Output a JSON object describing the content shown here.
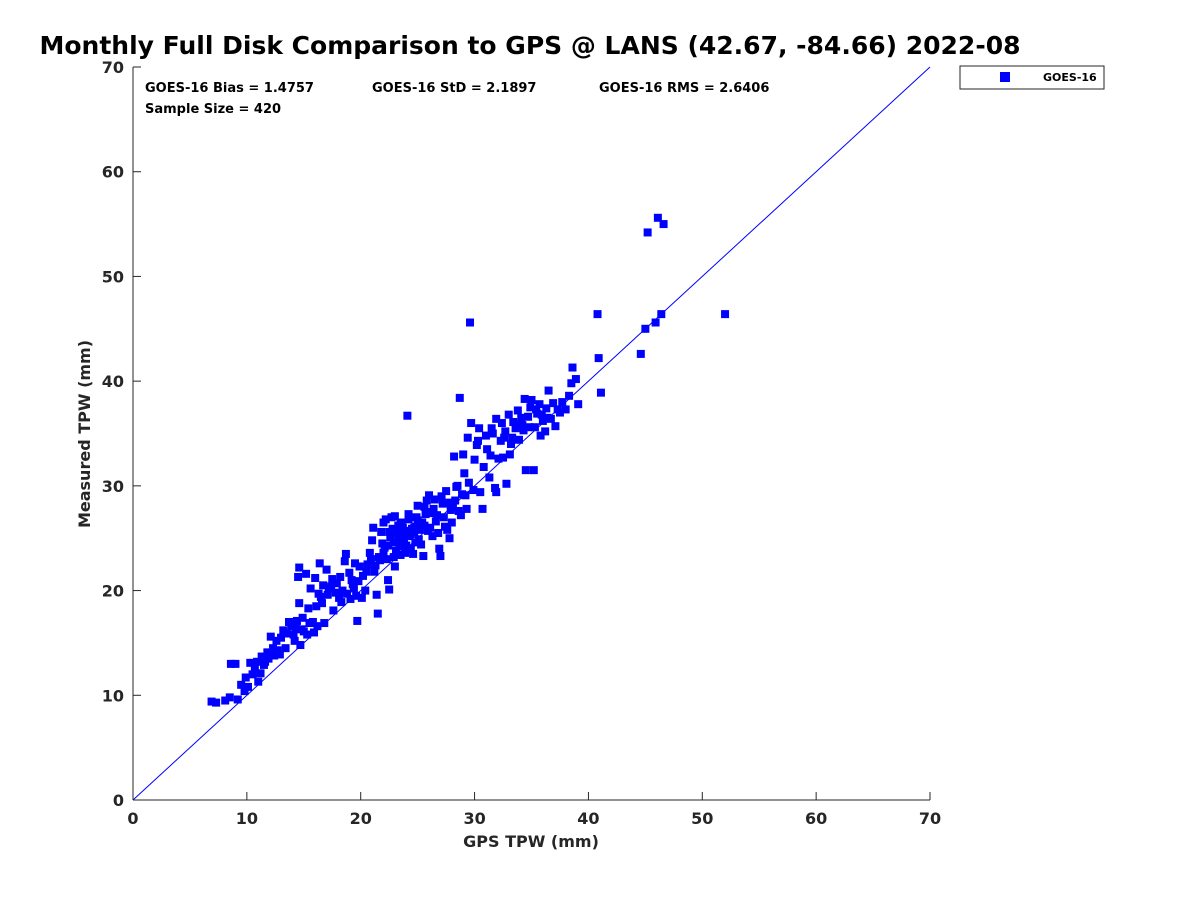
{
  "chart_data": {
    "type": "scatter",
    "title": "Monthly Full Disk Comparison to GPS @ LANS (42.67, -84.66) 2022-08",
    "xlabel": "GPS TPW (mm)",
    "ylabel": "Measured TPW (mm)",
    "xlim": [
      0,
      70
    ],
    "ylim": [
      0,
      70
    ],
    "xticks": [
      "0",
      "10",
      "20",
      "30",
      "40",
      "50",
      "60",
      "70"
    ],
    "yticks": [
      "0",
      "10",
      "20",
      "30",
      "40",
      "50",
      "60",
      "70"
    ],
    "grid": false,
    "legend_position": "outside-top-right",
    "reference_line": {
      "x": [
        0,
        70
      ],
      "y": [
        0,
        70
      ],
      "color": "#0000ff"
    },
    "stats": {
      "bias": "GOES-16 Bias = 1.4757",
      "std": "GOES-16 StD = 2.1897",
      "rms": "GOES-16 RMS = 2.6406",
      "sample": "Sample Size = 420"
    },
    "series": [
      {
        "name": "GOES-16",
        "color": "#0000ff",
        "marker": "square",
        "points": [
          [
            6.9,
            9.4
          ],
          [
            7.3,
            9.3
          ],
          [
            8.1,
            9.5
          ],
          [
            8.5,
            9.8
          ],
          [
            9.2,
            9.6
          ],
          [
            9.8,
            10.4
          ],
          [
            9.5,
            11.0
          ],
          [
            10.1,
            10.8
          ],
          [
            9.9,
            11.7
          ],
          [
            10.5,
            12.0
          ],
          [
            9.0,
            13.0
          ],
          [
            8.6,
            13.0
          ],
          [
            10.3,
            13.1
          ],
          [
            10.9,
            13.2
          ],
          [
            11.0,
            11.3
          ],
          [
            11.2,
            12.1
          ],
          [
            11.5,
            12.9
          ],
          [
            11.3,
            13.7
          ],
          [
            11.8,
            14.1
          ],
          [
            11.9,
            13.5
          ],
          [
            12.3,
            14.5
          ],
          [
            12.1,
            15.6
          ],
          [
            12.6,
            15.2
          ],
          [
            12.9,
            13.9
          ],
          [
            13.4,
            14.5
          ],
          [
            13.2,
            16.2
          ],
          [
            13.7,
            17.0
          ],
          [
            14.1,
            15.8
          ],
          [
            14.3,
            16.5
          ],
          [
            14.7,
            14.8
          ],
          [
            15.0,
            16.1
          ],
          [
            15.3,
            15.8
          ],
          [
            14.9,
            17.4
          ],
          [
            14.6,
            18.8
          ],
          [
            15.4,
            18.3
          ],
          [
            15.8,
            17.0
          ],
          [
            16.2,
            16.6
          ],
          [
            16.1,
            18.5
          ],
          [
            16.5,
            19.4
          ],
          [
            16.8,
            16.9
          ],
          [
            15.6,
            20.2
          ],
          [
            15.2,
            21.6
          ],
          [
            14.5,
            21.3
          ],
          [
            14.6,
            22.2
          ],
          [
            16.0,
            21.2
          ],
          [
            16.4,
            22.6
          ],
          [
            16.7,
            20.5
          ],
          [
            17.0,
            22.0
          ],
          [
            17.1,
            19.6
          ],
          [
            17.4,
            20.4
          ],
          [
            17.8,
            19.8
          ],
          [
            17.6,
            18.1
          ],
          [
            18.1,
            19.3
          ],
          [
            18.4,
            20.0
          ],
          [
            18.2,
            21.3
          ],
          [
            18.6,
            22.8
          ],
          [
            18.7,
            23.5
          ],
          [
            19.0,
            21.7
          ],
          [
            19.3,
            20.6
          ],
          [
            19.6,
            19.5
          ],
          [
            19.7,
            17.1
          ],
          [
            19.9,
            22.3
          ],
          [
            20.2,
            21.4
          ],
          [
            20.4,
            20.0
          ],
          [
            20.6,
            22.5
          ],
          [
            20.8,
            23.6
          ],
          [
            21.0,
            24.8
          ],
          [
            21.2,
            21.8
          ],
          [
            21.4,
            19.6
          ],
          [
            21.5,
            17.8
          ],
          [
            21.6,
            23.2
          ],
          [
            21.8,
            25.6
          ],
          [
            22.0,
            26.5
          ],
          [
            22.1,
            24.1
          ],
          [
            22.3,
            23.0
          ],
          [
            22.4,
            21.0
          ],
          [
            22.5,
            20.1
          ],
          [
            22.6,
            25.1
          ],
          [
            22.7,
            27.0
          ],
          [
            22.9,
            24.6
          ],
          [
            23.0,
            22.3
          ],
          [
            23.1,
            23.8
          ],
          [
            23.2,
            25.5
          ],
          [
            23.3,
            26.2
          ],
          [
            23.4,
            24.2
          ],
          [
            23.5,
            23.4
          ],
          [
            23.6,
            25.0
          ],
          [
            23.7,
            26.0
          ],
          [
            23.8,
            24.5
          ],
          [
            23.9,
            23.6
          ],
          [
            24.0,
            25.7
          ],
          [
            24.1,
            36.7
          ],
          [
            24.2,
            26.8
          ],
          [
            24.3,
            25.2
          ],
          [
            24.4,
            24.0
          ],
          [
            24.6,
            23.5
          ],
          [
            24.7,
            25.6
          ],
          [
            24.8,
            26.1
          ],
          [
            24.9,
            27.0
          ],
          [
            25.1,
            24.9
          ],
          [
            25.2,
            25.8
          ],
          [
            25.4,
            26.5
          ],
          [
            25.5,
            23.3
          ],
          [
            25.7,
            27.3
          ],
          [
            25.8,
            28.6
          ],
          [
            26.0,
            29.1
          ],
          [
            26.1,
            26.0
          ],
          [
            26.3,
            25.2
          ],
          [
            26.4,
            27.8
          ],
          [
            26.6,
            26.6
          ],
          [
            26.8,
            25.5
          ],
          [
            26.9,
            24.0
          ],
          [
            27.0,
            23.3
          ],
          [
            27.2,
            28.3
          ],
          [
            27.3,
            27.0
          ],
          [
            27.5,
            29.5
          ],
          [
            27.6,
            25.8
          ],
          [
            27.8,
            25.0
          ],
          [
            28.0,
            26.5
          ],
          [
            28.1,
            28.0
          ],
          [
            28.2,
            32.8
          ],
          [
            28.4,
            29.9
          ],
          [
            28.6,
            27.6
          ],
          [
            28.7,
            38.4
          ],
          [
            28.9,
            29.2
          ],
          [
            29.0,
            33.0
          ],
          [
            29.1,
            31.2
          ],
          [
            29.3,
            27.8
          ],
          [
            29.4,
            34.6
          ],
          [
            29.6,
            45.6
          ],
          [
            29.7,
            36.0
          ],
          [
            29.9,
            29.6
          ],
          [
            30.0,
            32.5
          ],
          [
            30.2,
            33.9
          ],
          [
            30.4,
            35.5
          ],
          [
            30.5,
            29.4
          ],
          [
            30.7,
            27.8
          ],
          [
            30.8,
            31.8
          ],
          [
            31.0,
            34.8
          ],
          [
            31.1,
            33.5
          ],
          [
            31.3,
            30.8
          ],
          [
            31.5,
            35.5
          ],
          [
            31.6,
            35.0
          ],
          [
            31.8,
            29.8
          ],
          [
            31.9,
            29.4
          ],
          [
            32.1,
            32.6
          ],
          [
            32.3,
            34.3
          ],
          [
            32.4,
            36.0
          ],
          [
            32.5,
            32.7
          ],
          [
            32.7,
            35.2
          ],
          [
            32.8,
            30.2
          ],
          [
            33.0,
            36.8
          ],
          [
            33.1,
            33.0
          ],
          [
            33.3,
            34.6
          ],
          [
            33.4,
            36.1
          ],
          [
            33.6,
            35.5
          ],
          [
            33.8,
            37.2
          ],
          [
            33.9,
            34.4
          ],
          [
            34.1,
            36.5
          ],
          [
            34.3,
            35.3
          ],
          [
            34.4,
            38.3
          ],
          [
            34.5,
            31.5
          ],
          [
            34.7,
            36.6
          ],
          [
            34.9,
            37.5
          ],
          [
            35.0,
            38.2
          ],
          [
            35.2,
            31.5
          ],
          [
            35.3,
            35.6
          ],
          [
            35.5,
            36.9
          ],
          [
            35.7,
            37.8
          ],
          [
            35.8,
            34.8
          ],
          [
            36.0,
            36.2
          ],
          [
            36.2,
            35.2
          ],
          [
            36.3,
            37.4
          ],
          [
            36.5,
            39.1
          ],
          [
            36.7,
            36.4
          ],
          [
            36.9,
            37.9
          ],
          [
            37.1,
            35.7
          ],
          [
            37.3,
            37.3
          ],
          [
            37.5,
            37.0
          ],
          [
            37.7,
            38.0
          ],
          [
            38.0,
            37.3
          ],
          [
            38.3,
            38.6
          ],
          [
            38.5,
            39.8
          ],
          [
            38.6,
            41.3
          ],
          [
            38.9,
            40.2
          ],
          [
            39.1,
            37.8
          ],
          [
            40.8,
            46.4
          ],
          [
            40.9,
            42.2
          ],
          [
            41.1,
            38.9
          ],
          [
            44.6,
            42.6
          ],
          [
            45.0,
            45.0
          ],
          [
            45.2,
            54.2
          ],
          [
            45.9,
            45.6
          ],
          [
            46.1,
            55.6
          ],
          [
            46.4,
            46.4
          ],
          [
            46.6,
            55.0
          ],
          [
            52.0,
            46.4
          ],
          [
            21.1,
            26.0
          ],
          [
            21.9,
            24.5
          ],
          [
            22.2,
            26.8
          ],
          [
            22.8,
            25.9
          ],
          [
            23.5,
            26.4
          ],
          [
            24.5,
            25.9
          ],
          [
            25.0,
            26.7
          ],
          [
            25.3,
            24.4
          ],
          [
            25.9,
            25.7
          ],
          [
            26.2,
            27.4
          ],
          [
            26.7,
            27.2
          ],
          [
            27.4,
            26.1
          ],
          [
            27.9,
            27.7
          ],
          [
            28.3,
            28.6
          ],
          [
            28.8,
            27.2
          ],
          [
            29.2,
            29.1
          ],
          [
            19.2,
            21.0
          ],
          [
            19.5,
            22.6
          ],
          [
            20.1,
            19.3
          ],
          [
            20.5,
            21.8
          ],
          [
            20.9,
            23.0
          ],
          [
            21.3,
            22.4
          ],
          [
            21.7,
            22.9
          ],
          [
            22.0,
            23.6
          ],
          [
            22.4,
            24.3
          ],
          [
            22.9,
            23.2
          ],
          [
            23.3,
            24.8
          ],
          [
            23.7,
            25.3
          ],
          [
            24.0,
            24.3
          ],
          [
            24.4,
            25.4
          ],
          [
            24.8,
            24.6
          ],
          [
            25.6,
            26.2
          ],
          [
            16.3,
            19.7
          ],
          [
            16.6,
            18.8
          ],
          [
            17.2,
            20.2
          ],
          [
            17.5,
            21.1
          ],
          [
            17.9,
            20.7
          ],
          [
            18.3,
            18.9
          ],
          [
            18.8,
            19.7
          ],
          [
            19.1,
            19.2
          ],
          [
            19.4,
            20.2
          ],
          [
            19.8,
            20.9
          ],
          [
            13.0,
            15.5
          ],
          [
            13.5,
            15.9
          ],
          [
            13.9,
            16.6
          ],
          [
            14.2,
            15.2
          ],
          [
            14.4,
            17.1
          ],
          [
            14.8,
            16.3
          ],
          [
            15.5,
            16.9
          ],
          [
            15.9,
            16.0
          ],
          [
            12.4,
            13.8
          ],
          [
            12.7,
            14.3
          ],
          [
            11.6,
            13.2
          ],
          [
            10.7,
            12.6
          ],
          [
            30.3,
            34.3
          ],
          [
            31.4,
            32.9
          ],
          [
            31.9,
            36.4
          ],
          [
            32.6,
            34.6
          ],
          [
            33.2,
            34.0
          ],
          [
            33.7,
            35.9
          ],
          [
            34.2,
            35.8
          ],
          [
            34.8,
            35.6
          ],
          [
            35.4,
            37.3
          ],
          [
            35.9,
            36.8
          ],
          [
            36.4,
            36.5
          ],
          [
            26.5,
            28.7
          ],
          [
            27.1,
            29.0
          ],
          [
            27.7,
            28.4
          ],
          [
            28.5,
            30.0
          ],
          [
            29.5,
            30.3
          ],
          [
            22.5,
            25.6
          ],
          [
            23.0,
            27.1
          ],
          [
            23.6,
            26.5
          ],
          [
            24.2,
            27.3
          ],
          [
            24.7,
            26.0
          ],
          [
            25.0,
            28.1
          ],
          [
            25.6,
            28.0
          ],
          [
            26.2,
            27.5
          ]
        ]
      }
    ]
  }
}
